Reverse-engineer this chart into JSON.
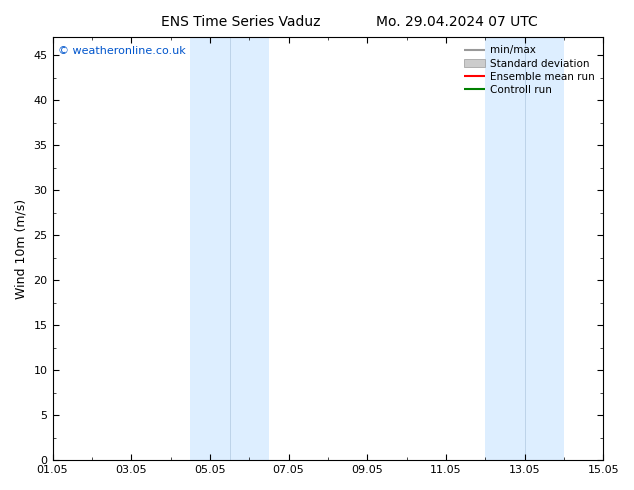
{
  "title_left": "ENS Time Series Vaduz",
  "title_right": "Mo. 29.04.2024 07 UTC",
  "ylabel": "Wind 10m (m/s)",
  "watermark": "© weatheronline.co.uk",
  "xlim_start": 0.0,
  "xlim_end": 14.0,
  "ylim_min": 0,
  "ylim_max": 47,
  "yticks": [
    0,
    5,
    10,
    15,
    20,
    25,
    30,
    35,
    40,
    45
  ],
  "xtick_positions": [
    0,
    2,
    4,
    6,
    8,
    10,
    12,
    14
  ],
  "xtick_labels": [
    "01.05",
    "03.05",
    "05.05",
    "07.05",
    "09.05",
    "11.05",
    "13.05",
    "15.05"
  ],
  "shaded_regions": [
    [
      3.5,
      4.5
    ],
    [
      4.5,
      5.5
    ],
    [
      11.0,
      12.0
    ],
    [
      12.0,
      13.0
    ]
  ],
  "shade_color": "#ddeeff",
  "bg_color": "#ffffff",
  "legend_items": [
    {
      "label": "min/max",
      "color": "#999999",
      "lw": 1.5
    },
    {
      "label": "Standard deviation",
      "color": "#cccccc",
      "lw": 8
    },
    {
      "label": "Ensemble mean run",
      "color": "#ff0000",
      "lw": 1.5
    },
    {
      "label": "Controll run",
      "color": "#008000",
      "lw": 1.5
    }
  ],
  "title_fontsize": 10,
  "tick_label_fontsize": 8,
  "ylabel_fontsize": 9,
  "watermark_color": "#0055cc",
  "watermark_fontsize": 8
}
